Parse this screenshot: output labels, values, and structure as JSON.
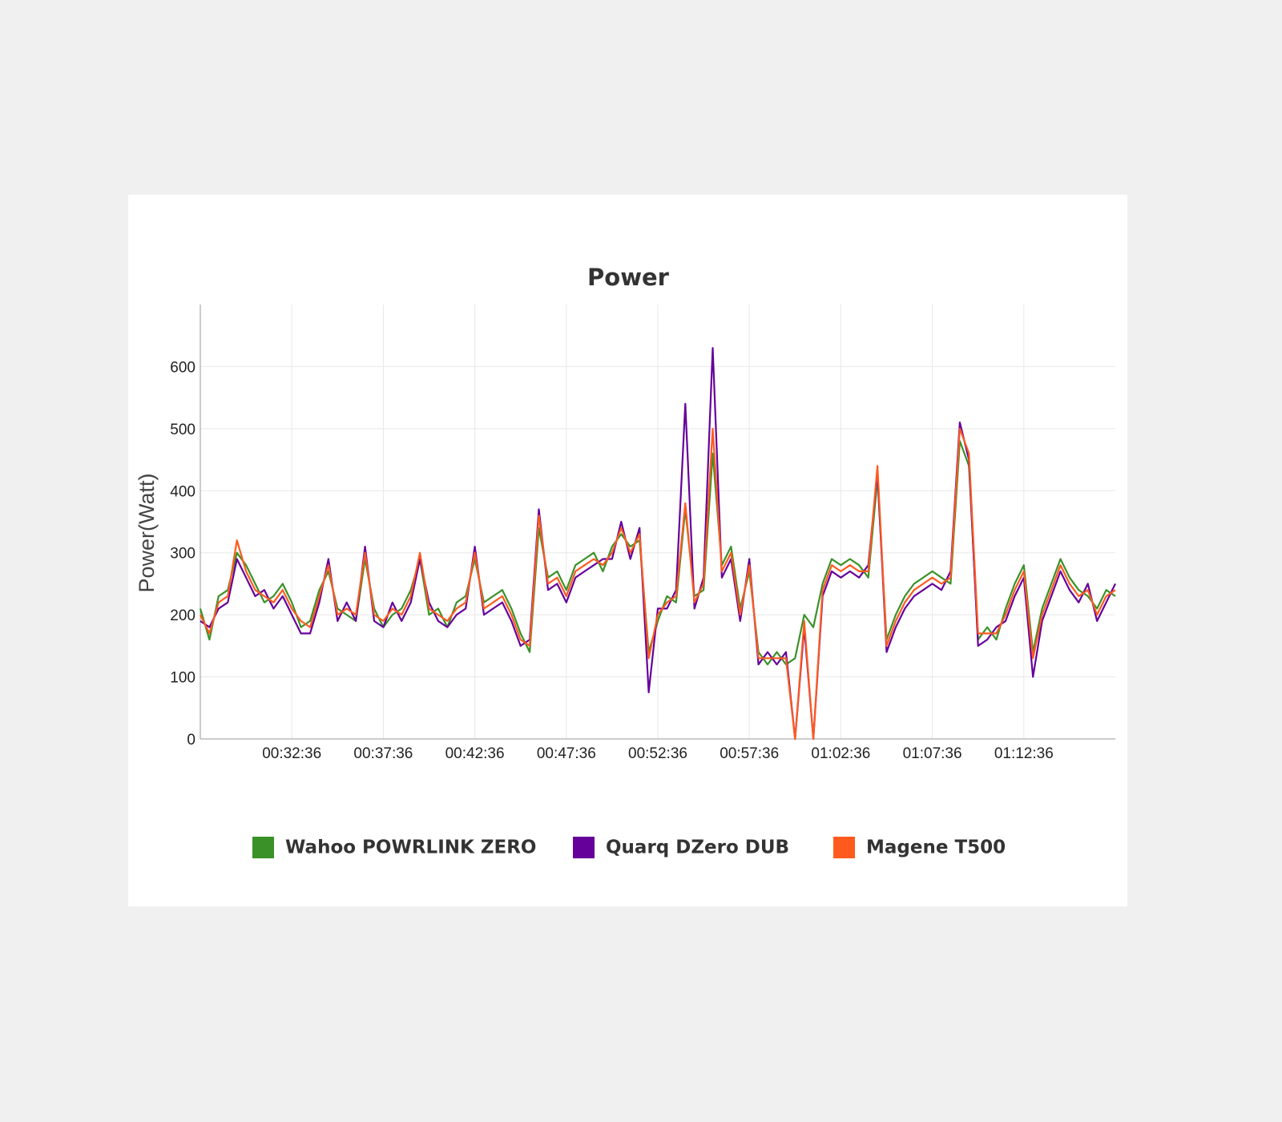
{
  "chart_data": {
    "type": "line",
    "title": "Power",
    "y_label": "Power(Watt)",
    "x": [
      "00:27:36",
      "00:28:06",
      "00:28:36",
      "00:29:06",
      "00:29:36",
      "00:30:06",
      "00:30:36",
      "00:31:06",
      "00:31:36",
      "00:32:06",
      "00:32:36",
      "00:33:06",
      "00:33:36",
      "00:34:06",
      "00:34:36",
      "00:35:06",
      "00:35:36",
      "00:36:06",
      "00:36:36",
      "00:37:06",
      "00:37:36",
      "00:38:06",
      "00:38:36",
      "00:39:06",
      "00:39:36",
      "00:40:06",
      "00:40:36",
      "00:41:06",
      "00:41:36",
      "00:42:06",
      "00:42:36",
      "00:43:06",
      "00:43:36",
      "00:44:06",
      "00:44:36",
      "00:45:06",
      "00:45:36",
      "00:46:06",
      "00:46:36",
      "00:47:06",
      "00:47:36",
      "00:48:06",
      "00:48:36",
      "00:49:06",
      "00:49:36",
      "00:50:06",
      "00:50:36",
      "00:51:06",
      "00:51:36",
      "00:52:06",
      "00:52:36",
      "00:53:06",
      "00:53:36",
      "00:54:06",
      "00:54:36",
      "00:55:06",
      "00:55:36",
      "00:56:06",
      "00:56:36",
      "00:57:06",
      "00:57:36",
      "00:58:06",
      "00:58:36",
      "00:59:06",
      "00:59:36",
      "01:00:06",
      "01:00:36",
      "01:01:06",
      "01:01:36",
      "01:02:06",
      "01:02:36",
      "01:03:06",
      "01:03:36",
      "01:04:06",
      "01:04:36",
      "01:05:06",
      "01:05:36",
      "01:06:06",
      "01:06:36",
      "01:07:06",
      "01:07:36",
      "01:08:06",
      "01:08:36",
      "01:09:06",
      "01:09:36",
      "01:10:06",
      "01:10:36",
      "01:11:06",
      "01:11:36",
      "01:12:06",
      "01:12:36",
      "01:13:06",
      "01:13:36",
      "01:14:06",
      "01:14:36",
      "01:15:06",
      "01:15:36",
      "01:16:06",
      "01:16:36",
      "01:17:06",
      "01:17:36"
    ],
    "series": [
      {
        "name": "Wahoo POWRLINK ZERO",
        "color": "#3a9128",
        "values": [
          210,
          160,
          230,
          240,
          300,
          280,
          250,
          220,
          230,
          250,
          220,
          180,
          190,
          240,
          270,
          210,
          200,
          190,
          290,
          210,
          180,
          200,
          210,
          240,
          290,
          200,
          210,
          180,
          220,
          230,
          290,
          220,
          230,
          240,
          210,
          170,
          140,
          340,
          260,
          270,
          240,
          280,
          290,
          300,
          270,
          310,
          330,
          310,
          320,
          140,
          190,
          230,
          220,
          370,
          230,
          240,
          460,
          280,
          310,
          210,
          270,
          140,
          120,
          140,
          120,
          130,
          200,
          180,
          250,
          290,
          280,
          290,
          280,
          260,
          420,
          160,
          200,
          230,
          250,
          260,
          270,
          260,
          250,
          480,
          440,
          160,
          180,
          160,
          210,
          250,
          280,
          140,
          210,
          250,
          290,
          260,
          240,
          230,
          210,
          240,
          230
        ]
      },
      {
        "name": "Quarq DZero DUB",
        "color": "#65009a",
        "values": [
          190,
          180,
          210,
          220,
          290,
          260,
          230,
          240,
          210,
          230,
          200,
          170,
          170,
          220,
          290,
          190,
          220,
          190,
          310,
          190,
          180,
          220,
          190,
          220,
          290,
          220,
          190,
          180,
          200,
          210,
          310,
          200,
          210,
          220,
          190,
          150,
          160,
          370,
          240,
          250,
          220,
          260,
          270,
          280,
          290,
          290,
          350,
          290,
          340,
          75,
          210,
          210,
          240,
          540,
          210,
          260,
          630,
          260,
          290,
          190,
          290,
          120,
          140,
          120,
          140,
          0,
          180,
          0,
          230,
          270,
          260,
          270,
          260,
          280,
          430,
          140,
          180,
          210,
          230,
          240,
          250,
          240,
          270,
          510,
          450,
          150,
          160,
          180,
          190,
          230,
          260,
          100,
          190,
          230,
          270,
          240,
          220,
          250,
          190,
          220,
          250
        ]
      },
      {
        "name": "Magene T500",
        "color": "#ff5a1e",
        "values": [
          200,
          170,
          220,
          230,
          320,
          270,
          240,
          230,
          220,
          240,
          210,
          190,
          180,
          230,
          280,
          200,
          210,
          200,
          300,
          200,
          190,
          210,
          200,
          230,
          300,
          210,
          200,
          190,
          210,
          220,
          300,
          210,
          220,
          230,
          200,
          160,
          150,
          360,
          250,
          260,
          230,
          270,
          280,
          290,
          280,
          300,
          340,
          300,
          330,
          130,
          200,
          220,
          230,
          380,
          220,
          250,
          500,
          270,
          300,
          200,
          280,
          130,
          130,
          130,
          130,
          0,
          190,
          0,
          240,
          280,
          270,
          280,
          270,
          270,
          440,
          150,
          190,
          220,
          240,
          250,
          260,
          250,
          260,
          500,
          460,
          170,
          170,
          170,
          200,
          240,
          270,
          130,
          200,
          240,
          280,
          250,
          230,
          240,
          200,
          230,
          240
        ]
      }
    ],
    "xlim": [
      "00:27:36",
      "01:17:36"
    ],
    "xticks": [
      "00:32:36",
      "00:37:36",
      "00:42:36",
      "00:47:36",
      "00:52:36",
      "00:57:36",
      "01:02:36",
      "01:07:36",
      "01:12:36"
    ],
    "ylim": [
      0,
      700
    ],
    "yticks": [
      0,
      100,
      200,
      300,
      400,
      500,
      600
    ],
    "grid": true
  }
}
